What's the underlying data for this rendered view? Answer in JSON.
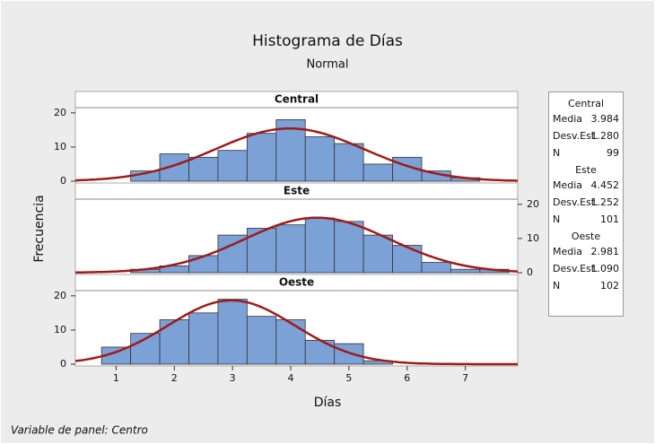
{
  "chart_data": {
    "type": "histogram",
    "title": "Histograma de Días",
    "subtitle": "Normal",
    "xlabel": "Días",
    "ylabel": "Frecuencia",
    "footer": "Variable de panel: Centro",
    "xlim": [
      0.3,
      7.9
    ],
    "xticks": [
      1,
      2,
      3,
      4,
      5,
      6,
      7
    ],
    "ylim": [
      0,
      21
    ],
    "yticks": [
      0,
      10,
      20
    ],
    "bar_color": "#7ba1d6",
    "fit_color": "#9e1b1b",
    "stat_names": [
      "Media",
      "Desv.Est.",
      "N"
    ],
    "panels": [
      {
        "name": "Central",
        "yaxis_side": "left",
        "bins": [
          1.25,
          1.75,
          2.25,
          2.75,
          3.25,
          3.75,
          4.25,
          4.75,
          5.25,
          5.75,
          6.25,
          6.75,
          7.25
        ],
        "counts": [
          3,
          8,
          7,
          9,
          14,
          18,
          13,
          11,
          5,
          7,
          3,
          1
        ],
        "stats": {
          "values": [
            3.984,
            1.28,
            99
          ],
          "value_labels": [
            "3.984",
            "1.280",
            "99"
          ]
        }
      },
      {
        "name": "Este",
        "yaxis_side": "right",
        "bins": [
          1.25,
          1.75,
          2.25,
          2.75,
          3.25,
          3.75,
          4.25,
          4.75,
          5.25,
          5.75,
          6.25,
          6.75,
          7.25,
          7.75
        ],
        "counts": [
          1,
          2,
          5,
          11,
          13,
          14,
          16,
          15,
          11,
          8,
          3,
          1,
          1
        ],
        "stats": {
          "values": [
            4.452,
            1.252,
            101
          ],
          "value_labels": [
            "4.452",
            "1.252",
            "101"
          ]
        }
      },
      {
        "name": "Oeste",
        "yaxis_side": "left",
        "bins": [
          0.75,
          1.25,
          1.75,
          2.25,
          2.75,
          3.25,
          3.75,
          4.25,
          4.75,
          5.25,
          5.75
        ],
        "counts": [
          5,
          9,
          13,
          15,
          19,
          14,
          13,
          7,
          6,
          1
        ],
        "stats": {
          "values": [
            2.981,
            1.09,
            102
          ],
          "value_labels": [
            "2.981",
            "1.090",
            "102"
          ]
        }
      }
    ]
  }
}
